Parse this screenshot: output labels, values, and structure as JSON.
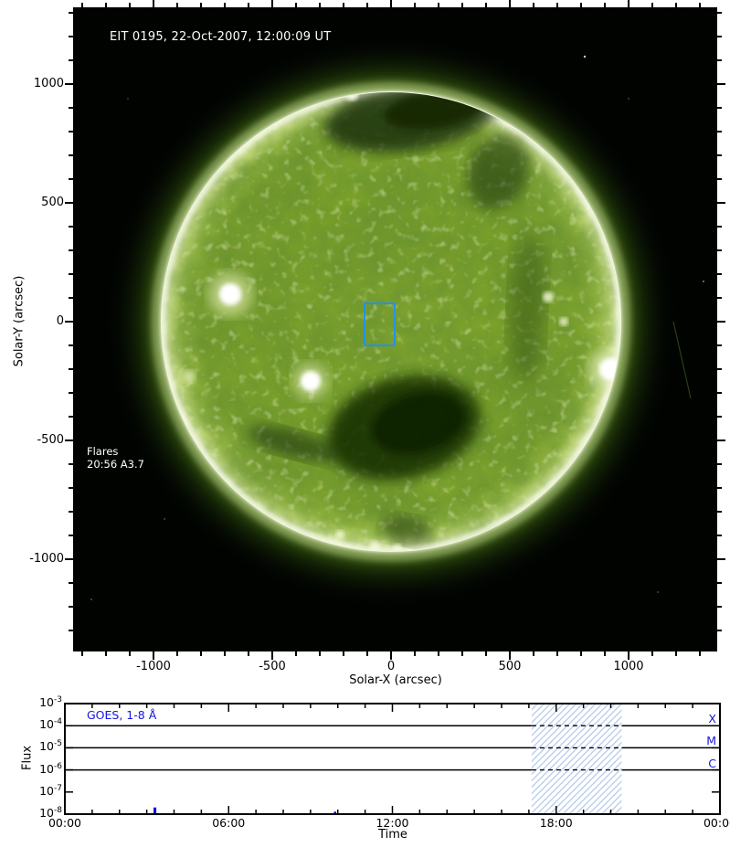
{
  "chart_data": [
    {
      "type": "heatmap",
      "name": "eit-195-full-disk-solar-image",
      "title": "EIT 0195, 22-Oct-2007, 12:00:09 UT",
      "xlabel": "Solar-X (arcsec)",
      "ylabel": "Solar-Y (arcsec)",
      "x_ticks": [
        -1000,
        -500,
        0,
        500,
        1000
      ],
      "y_ticks": [
        1000,
        500,
        0,
        -500,
        -1000
      ],
      "minor_tick_step_arcsec": 100,
      "xlim": [
        -1340,
        1375
      ],
      "ylim": [
        -1390,
        1325
      ],
      "solar_disk": {
        "center_arcsec": [
          0,
          0
        ],
        "radius_arcsec": 965
      },
      "fov_box_arcsec": {
        "x": [
          -115,
          20
        ],
        "y": [
          -105,
          80
        ]
      },
      "annotations": [
        {
          "text": "Flares"
        },
        {
          "text": "20:56 A3.7"
        }
      ],
      "visual_features": [
        "dark coronal hole at north polar region",
        "large dark coronal hole south of disk center",
        "bright active region east of center",
        "bright active region near west limb",
        "bright limb ring with faint green corona and speckle noise"
      ]
    },
    {
      "type": "line",
      "name": "goes-xray-flux",
      "series_label": "GOES, 1-8 Å",
      "xlabel": "Time",
      "ylabel": "Flux",
      "x_ticks": [
        "00:00",
        "06:00",
        "12:00",
        "18:00",
        "00:00"
      ],
      "x_major_tick_hours": [
        0,
        6,
        12,
        18,
        24
      ],
      "x_range_hours": [
        0,
        24
      ],
      "y_ticks_exponents": [
        -3,
        -4,
        -5,
        -6,
        -7,
        -8
      ],
      "ylim": [
        1e-08,
        0.001
      ],
      "flux_class_lines": [
        {
          "label": "X",
          "flux": 0.0001
        },
        {
          "label": "M",
          "flux": 1e-05
        },
        {
          "label": "C",
          "flux": 1e-06
        }
      ],
      "hatched_window_hours": [
        17.1,
        20.4
      ],
      "data_points": [
        {
          "hour": 3.3,
          "flux": 2e-08
        },
        {
          "hour": 9.9,
          "flux": 1.3e-08
        }
      ],
      "grid": false,
      "legend_position": "top-left"
    }
  ],
  "colors": {
    "annotation_blue": "#1414e0",
    "fov_box_blue": "#2491ee",
    "spike_blue": "#0000dd",
    "hatch_blue": "#b7cbe9",
    "disk_green": "#7aa02a",
    "coronal_hole_dark": "#142d06",
    "limb_bright": "#f5f9e4"
  }
}
